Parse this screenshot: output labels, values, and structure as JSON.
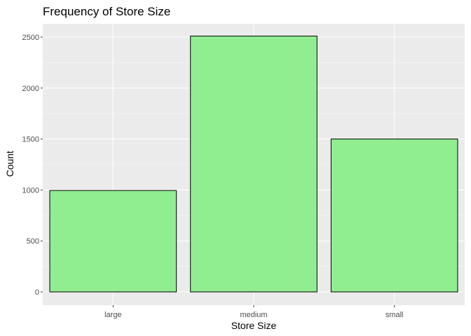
{
  "chart_data": {
    "type": "bar",
    "title": "Frequency of Store Size",
    "xlabel": "Store Size",
    "ylabel": "Count",
    "categories": [
      "large",
      "medium",
      "small"
    ],
    "values": [
      995,
      2510,
      1500
    ],
    "ylim": [
      0,
      2600
    ],
    "yticks": [
      0,
      500,
      1000,
      1500,
      2000,
      2500
    ],
    "grid": true,
    "legend": "none",
    "colors": {
      "bar_fill": "#90EE90",
      "bar_stroke": "#000000",
      "panel_background": "#EBEBEB",
      "grid_major": "#FFFFFF",
      "grid_minor": "#F7F7F7"
    }
  }
}
